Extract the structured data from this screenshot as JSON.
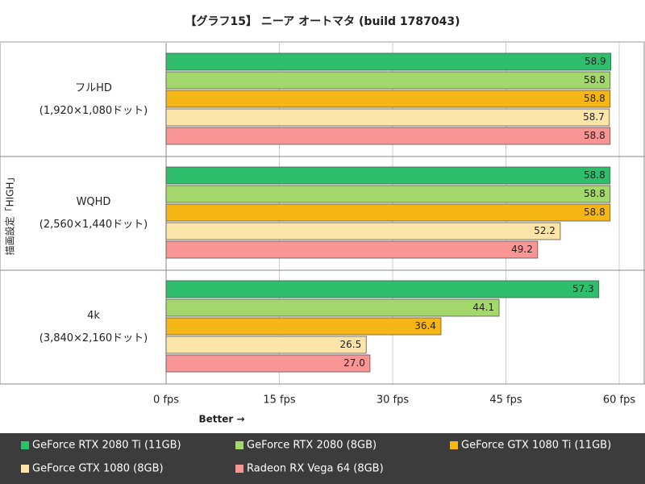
{
  "chart_data": {
    "type": "hbar",
    "title": "【グラフ15】 ニーア オートマタ (build 1787043)",
    "y_axis_label": "描画設定「HIGH」",
    "x_axis_note": "Better →",
    "categories": [
      "フルHD",
      "WQHD",
      "4k"
    ],
    "category_sublabels": [
      "(1,920×1,080ドット)",
      "(2,560×1,440ドット)",
      "(3,840×2,160ドット)"
    ],
    "series": [
      {
        "name": "GeForce RTX 2080 Ti (11GB)",
        "color": "#2fbf6c",
        "values": [
          58.9,
          58.8,
          57.3
        ],
        "value_labels": [
          "58.9",
          "58.8",
          "57.3"
        ]
      },
      {
        "name": "GeForce RTX 2080 (8GB)",
        "color": "#a5d86c",
        "values": [
          58.8,
          58.8,
          44.1
        ],
        "value_labels": [
          "58.8",
          "58.8",
          "44.1"
        ]
      },
      {
        "name": "GeForce GTX 1080 Ti (11GB)",
        "color": "#f6b716",
        "values": [
          58.8,
          58.8,
          36.4
        ],
        "value_labels": [
          "58.8",
          "58.8",
          "36.4"
        ]
      },
      {
        "name": "GeForce GTX 1080 (8GB)",
        "color": "#fde4a8",
        "values": [
          58.7,
          52.2,
          26.5
        ],
        "value_labels": [
          "58.7",
          "52.2",
          "26.5"
        ]
      },
      {
        "name": "Radeon RX Vega 64 (8GB)",
        "color": "#f99595",
        "values": [
          58.8,
          49.2,
          27
        ],
        "value_labels": [
          "58.8",
          "49.2",
          "27.0"
        ]
      }
    ],
    "xlim": [
      0,
      60
    ],
    "xticks": [
      {
        "value": 0,
        "label": "0 fps"
      },
      {
        "value": 15,
        "label": "15 fps"
      },
      {
        "value": 30,
        "label": "30 fps"
      },
      {
        "value": 45,
        "label": "45 fps"
      },
      {
        "value": 60,
        "label": "60 fps"
      }
    ],
    "grid": true,
    "legend": "bottom"
  }
}
